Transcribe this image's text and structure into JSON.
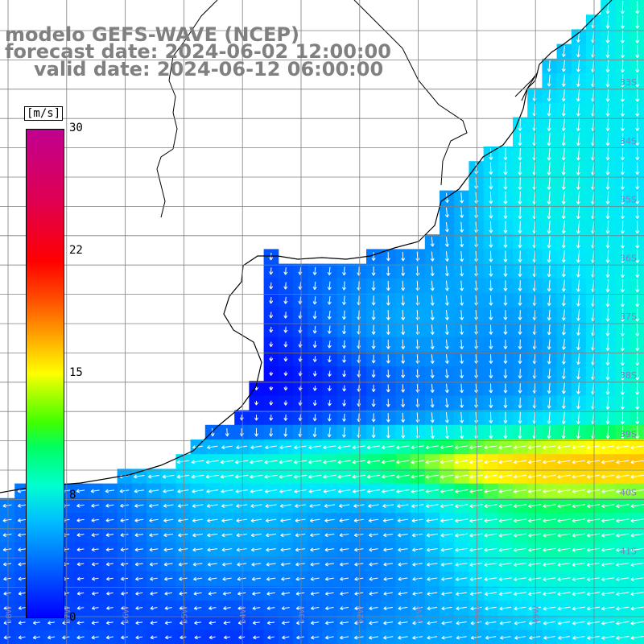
{
  "titles": {
    "model": "modelo GEFS-WAVE (NCEP)",
    "forecast": "forecast date: 2024-06-02 12:00:00",
    "valid": "valid date: 2024-06-12 06:00:00"
  },
  "colorbar": {
    "unit": "[m/s]",
    "ticks": [
      "30",
      "22",
      "15",
      "8",
      "0"
    ],
    "tick_values": [
      30,
      22,
      15,
      8,
      0
    ],
    "min": 0,
    "max": 30
  },
  "lat_labels": [
    "33S",
    "34S",
    "35S",
    "36S",
    "37S",
    "38S",
    "39S",
    "40S",
    "41S"
  ],
  "lon_labels": [
    "58W",
    "57W",
    "56W",
    "55W",
    "54W",
    "53W",
    "52W",
    "51W",
    "50W",
    "49W"
  ],
  "colors": {
    "ocean_low": "#0000ff",
    "ocean_mid": "#00c0ff",
    "ocean_high": "#00ff80",
    "land": "#ffffff",
    "grid": "#808080",
    "arrows": "#ffffff",
    "coastline": "#000000",
    "title_text": "#808080"
  },
  "field": "wind speed with direction arrows"
}
